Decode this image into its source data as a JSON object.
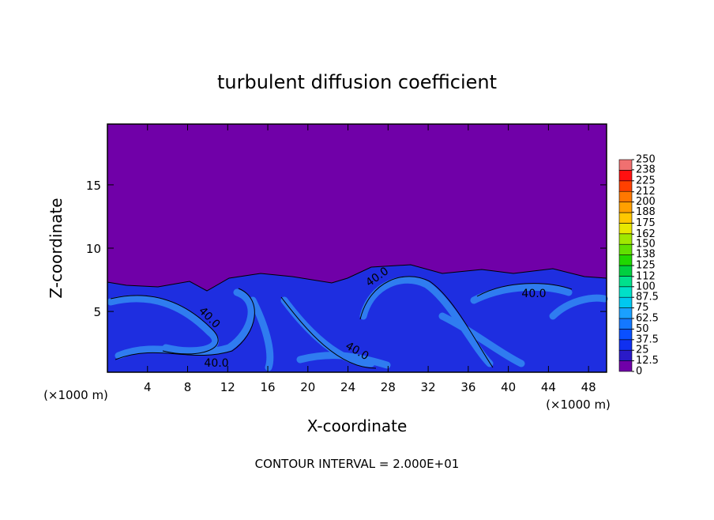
{
  "chart_data": {
    "type": "contour",
    "title": "turbulent diffusion coefficient",
    "x_label": "X-coordinate",
    "y_label": "Z-coordinate",
    "x_unit": "(×1000 m)",
    "y_unit": "(×1000 m)",
    "xlim": [
      0,
      49.8
    ],
    "ylim": [
      0.2,
      19.8
    ],
    "xticks": [
      4,
      8,
      12,
      16,
      20,
      24,
      28,
      32,
      36,
      40,
      44,
      48
    ],
    "yticks": [
      5,
      10,
      15
    ],
    "contour_labels": [
      "40.0",
      "40.0",
      "40.0",
      "40.0",
      "40.0"
    ],
    "footnote": "CONTOUR INTERVAL = 2.000E+01",
    "colorbar": {
      "ticks": [
        0,
        12.5,
        25,
        37.5,
        50,
        62.5,
        75,
        87.5,
        100,
        112,
        125,
        138,
        150,
        162,
        175,
        188,
        200,
        212,
        225,
        238,
        250
      ],
      "colors": [
        "#7000a8",
        "#2a1ac8",
        "#1030f0",
        "#0a50ff",
        "#1478ff",
        "#1aa0ff",
        "#00c8f0",
        "#00e0c8",
        "#00e08c",
        "#00d040",
        "#20d800",
        "#60e000",
        "#a0e800",
        "#e8e800",
        "#ffc800",
        "#ffa000",
        "#ff7800",
        "#ff4000",
        "#ff1010",
        "#f07070"
      ]
    }
  }
}
